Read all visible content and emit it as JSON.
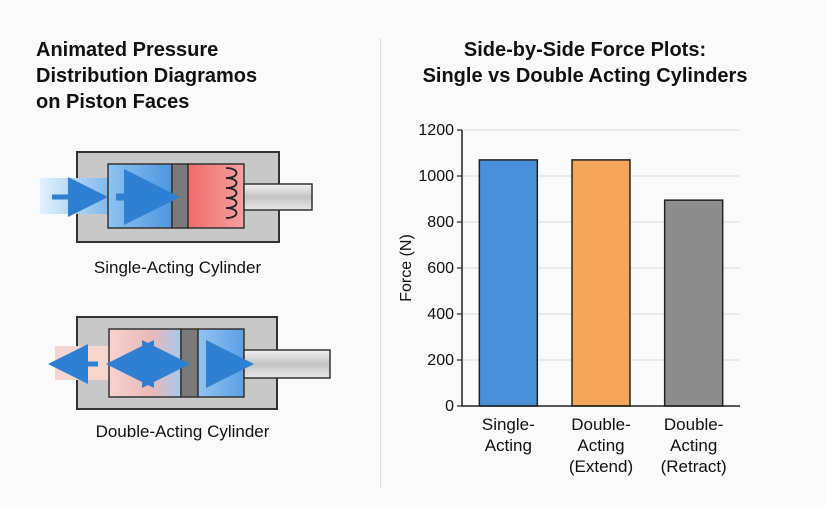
{
  "left": {
    "title_lines": [
      "Animated Pressure",
      "Distribution Diagramos",
      "on Piston Faces"
    ],
    "single_caption": "Single-Acting Cylinder",
    "double_caption": "Double-Acting Cylinder"
  },
  "right": {
    "title_lines": [
      "Side-by-Side Force Plots:",
      "Single vs Double Acting Cylinders"
    ]
  },
  "chart_data": {
    "type": "bar",
    "title": "Side-by-Side Force Plots: Single vs Double Acting Cylinders",
    "xlabel": "",
    "ylabel": "Force (N)",
    "ylim": [
      0,
      1200
    ],
    "yticks": [
      0,
      200,
      400,
      600,
      800,
      1000,
      1200
    ],
    "grid": true,
    "categories": [
      [
        "Single-",
        "Acting"
      ],
      [
        "Double-",
        "Acting",
        "(Extend)"
      ],
      [
        "Double-",
        "Acting",
        "(Retract)"
      ]
    ],
    "values": [
      1070,
      1070,
      895
    ],
    "colors": [
      "#4a90d9",
      "#f4a65b",
      "#8e8e8e"
    ]
  },
  "colors": {
    "pressure_blue": "#5aa0e6",
    "pressure_red": "#ee5a5a",
    "housing_gray": "#c8c8c8",
    "piston_gray": "#7a7a7a"
  }
}
